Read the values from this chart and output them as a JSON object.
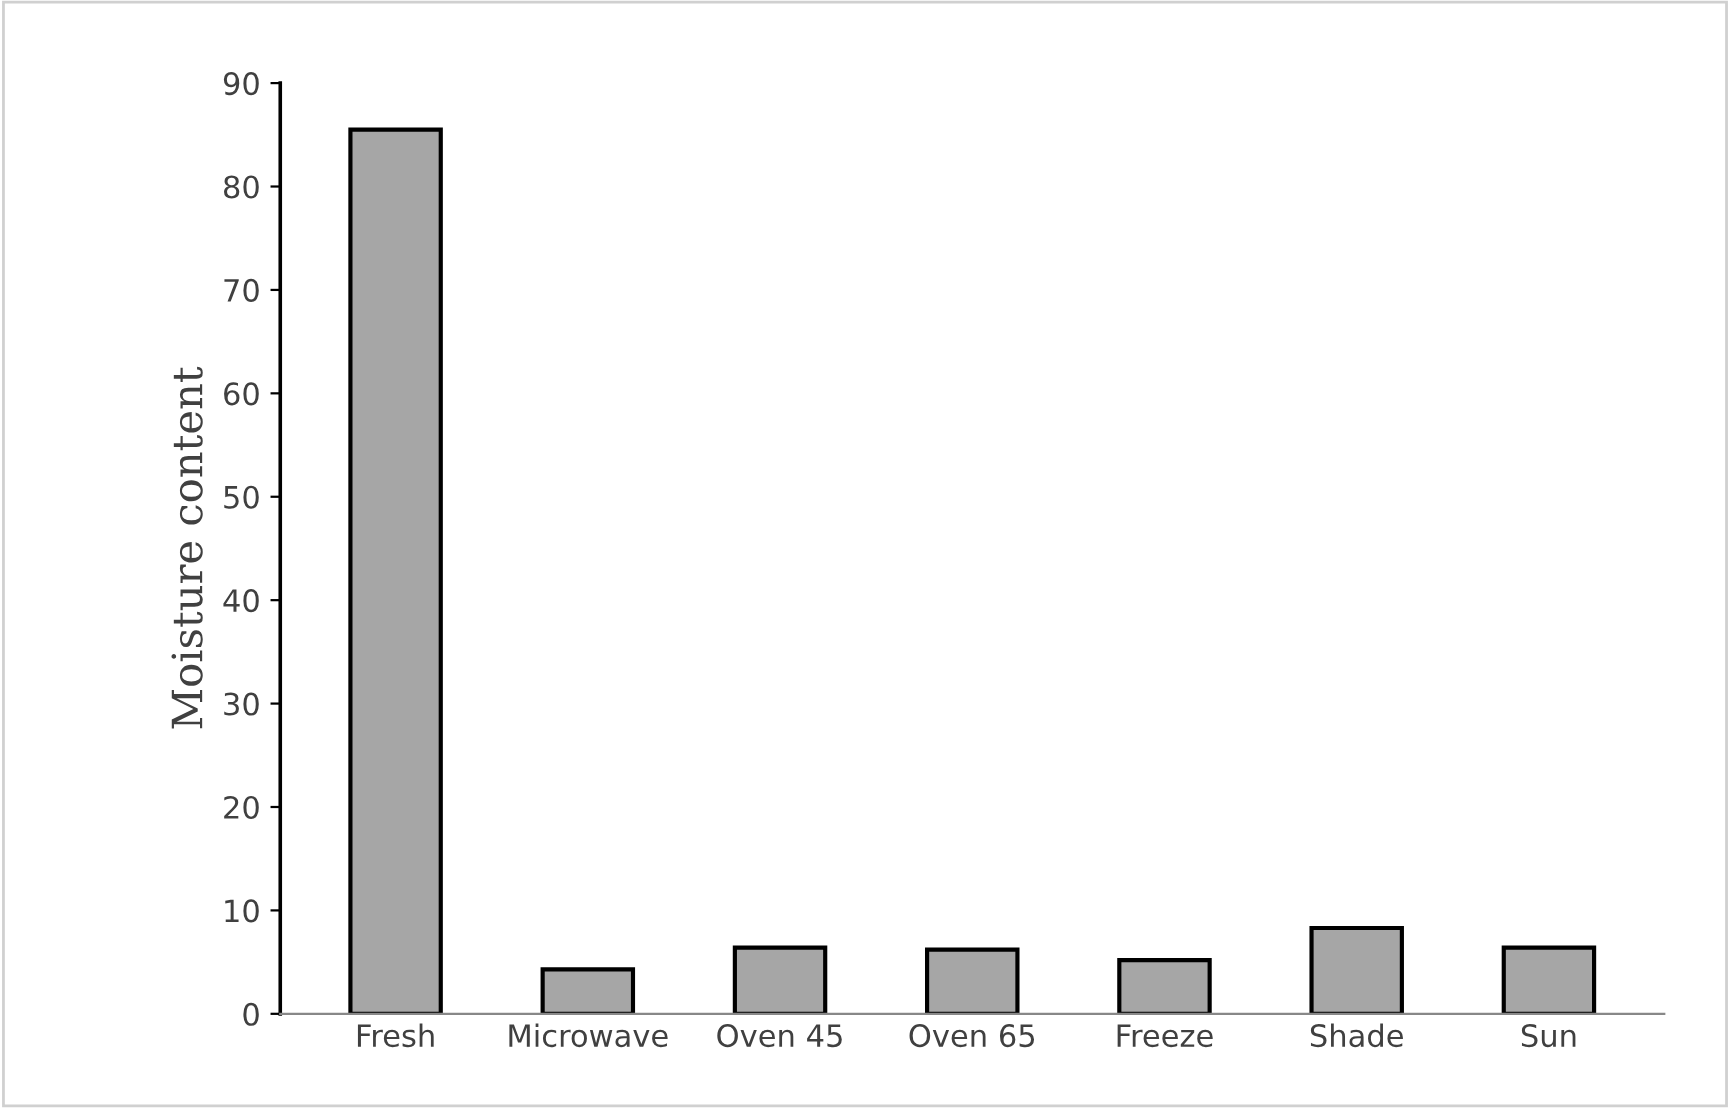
{
  "chart_data": {
    "type": "bar",
    "ylabel": "Moisture content",
    "categories": [
      "Fresh",
      "Microwave",
      "Oven 45",
      "Oven 65",
      "Freeze",
      "Shade",
      "Sun"
    ],
    "values": [
      85.5,
      4.3,
      6.4,
      6.2,
      5.2,
      8.3,
      6.4
    ],
    "color": "#a6a6a6",
    "ylim": [
      0,
      90
    ],
    "yticks": [
      0,
      10,
      20,
      30,
      40,
      50,
      60,
      70,
      80,
      90
    ],
    "grid": false
  }
}
